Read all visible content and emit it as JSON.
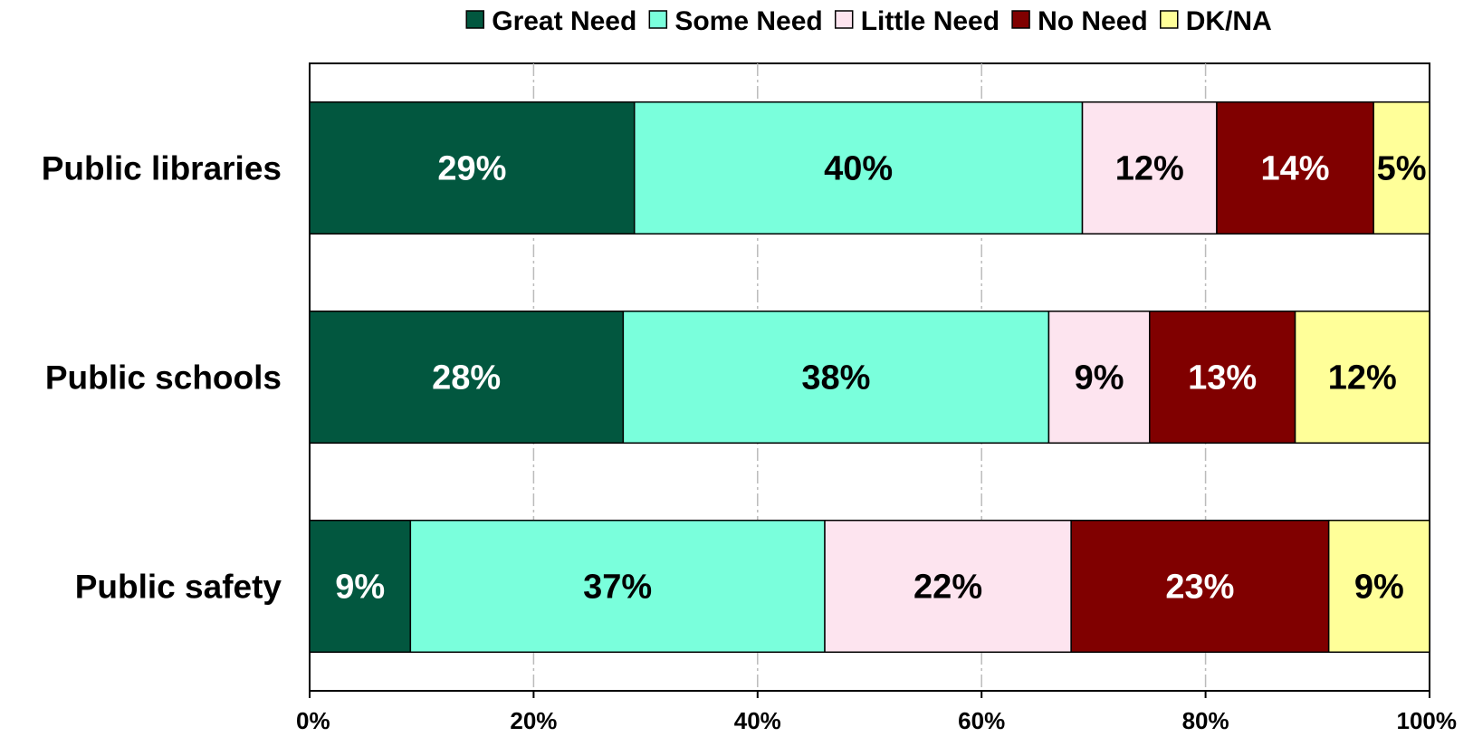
{
  "chart_data": {
    "type": "bar",
    "orientation": "horizontal",
    "stacked": "percent",
    "title": "",
    "xlabel": "",
    "ylabel": "",
    "xlim": [
      0,
      100
    ],
    "x_ticks": [
      "0%",
      "20%",
      "40%",
      "60%",
      "80%",
      "100%"
    ],
    "grid": "vertical dashed",
    "legend_position": "top",
    "categories": [
      "Public libraries",
      "Public schools",
      "Public safety"
    ],
    "series": [
      {
        "name": "Great Need",
        "color": "#02573f",
        "label_color": "#ffffff",
        "values": [
          29,
          28,
          9
        ],
        "labels": [
          "29%",
          "28%",
          "9%"
        ]
      },
      {
        "name": "Some Need",
        "color": "#7affdc",
        "label_color": "#000000",
        "values": [
          40,
          38,
          37
        ],
        "labels": [
          "40%",
          "38%",
          "37%"
        ]
      },
      {
        "name": "Little Need",
        "color": "#fde4ef",
        "label_color": "#000000",
        "values": [
          12,
          9,
          22
        ],
        "labels": [
          "12%",
          "9%",
          "22%"
        ]
      },
      {
        "name": "No Need",
        "color": "#800000",
        "label_color": "#ffffff",
        "values": [
          14,
          13,
          23
        ],
        "labels": [
          "14%",
          "13%",
          "23%"
        ]
      },
      {
        "name": "DK/NA",
        "color": "#ffff99",
        "label_color": "#000000",
        "values": [
          5,
          12,
          9
        ],
        "labels": [
          "5%",
          "12%",
          "9%"
        ]
      }
    ]
  }
}
